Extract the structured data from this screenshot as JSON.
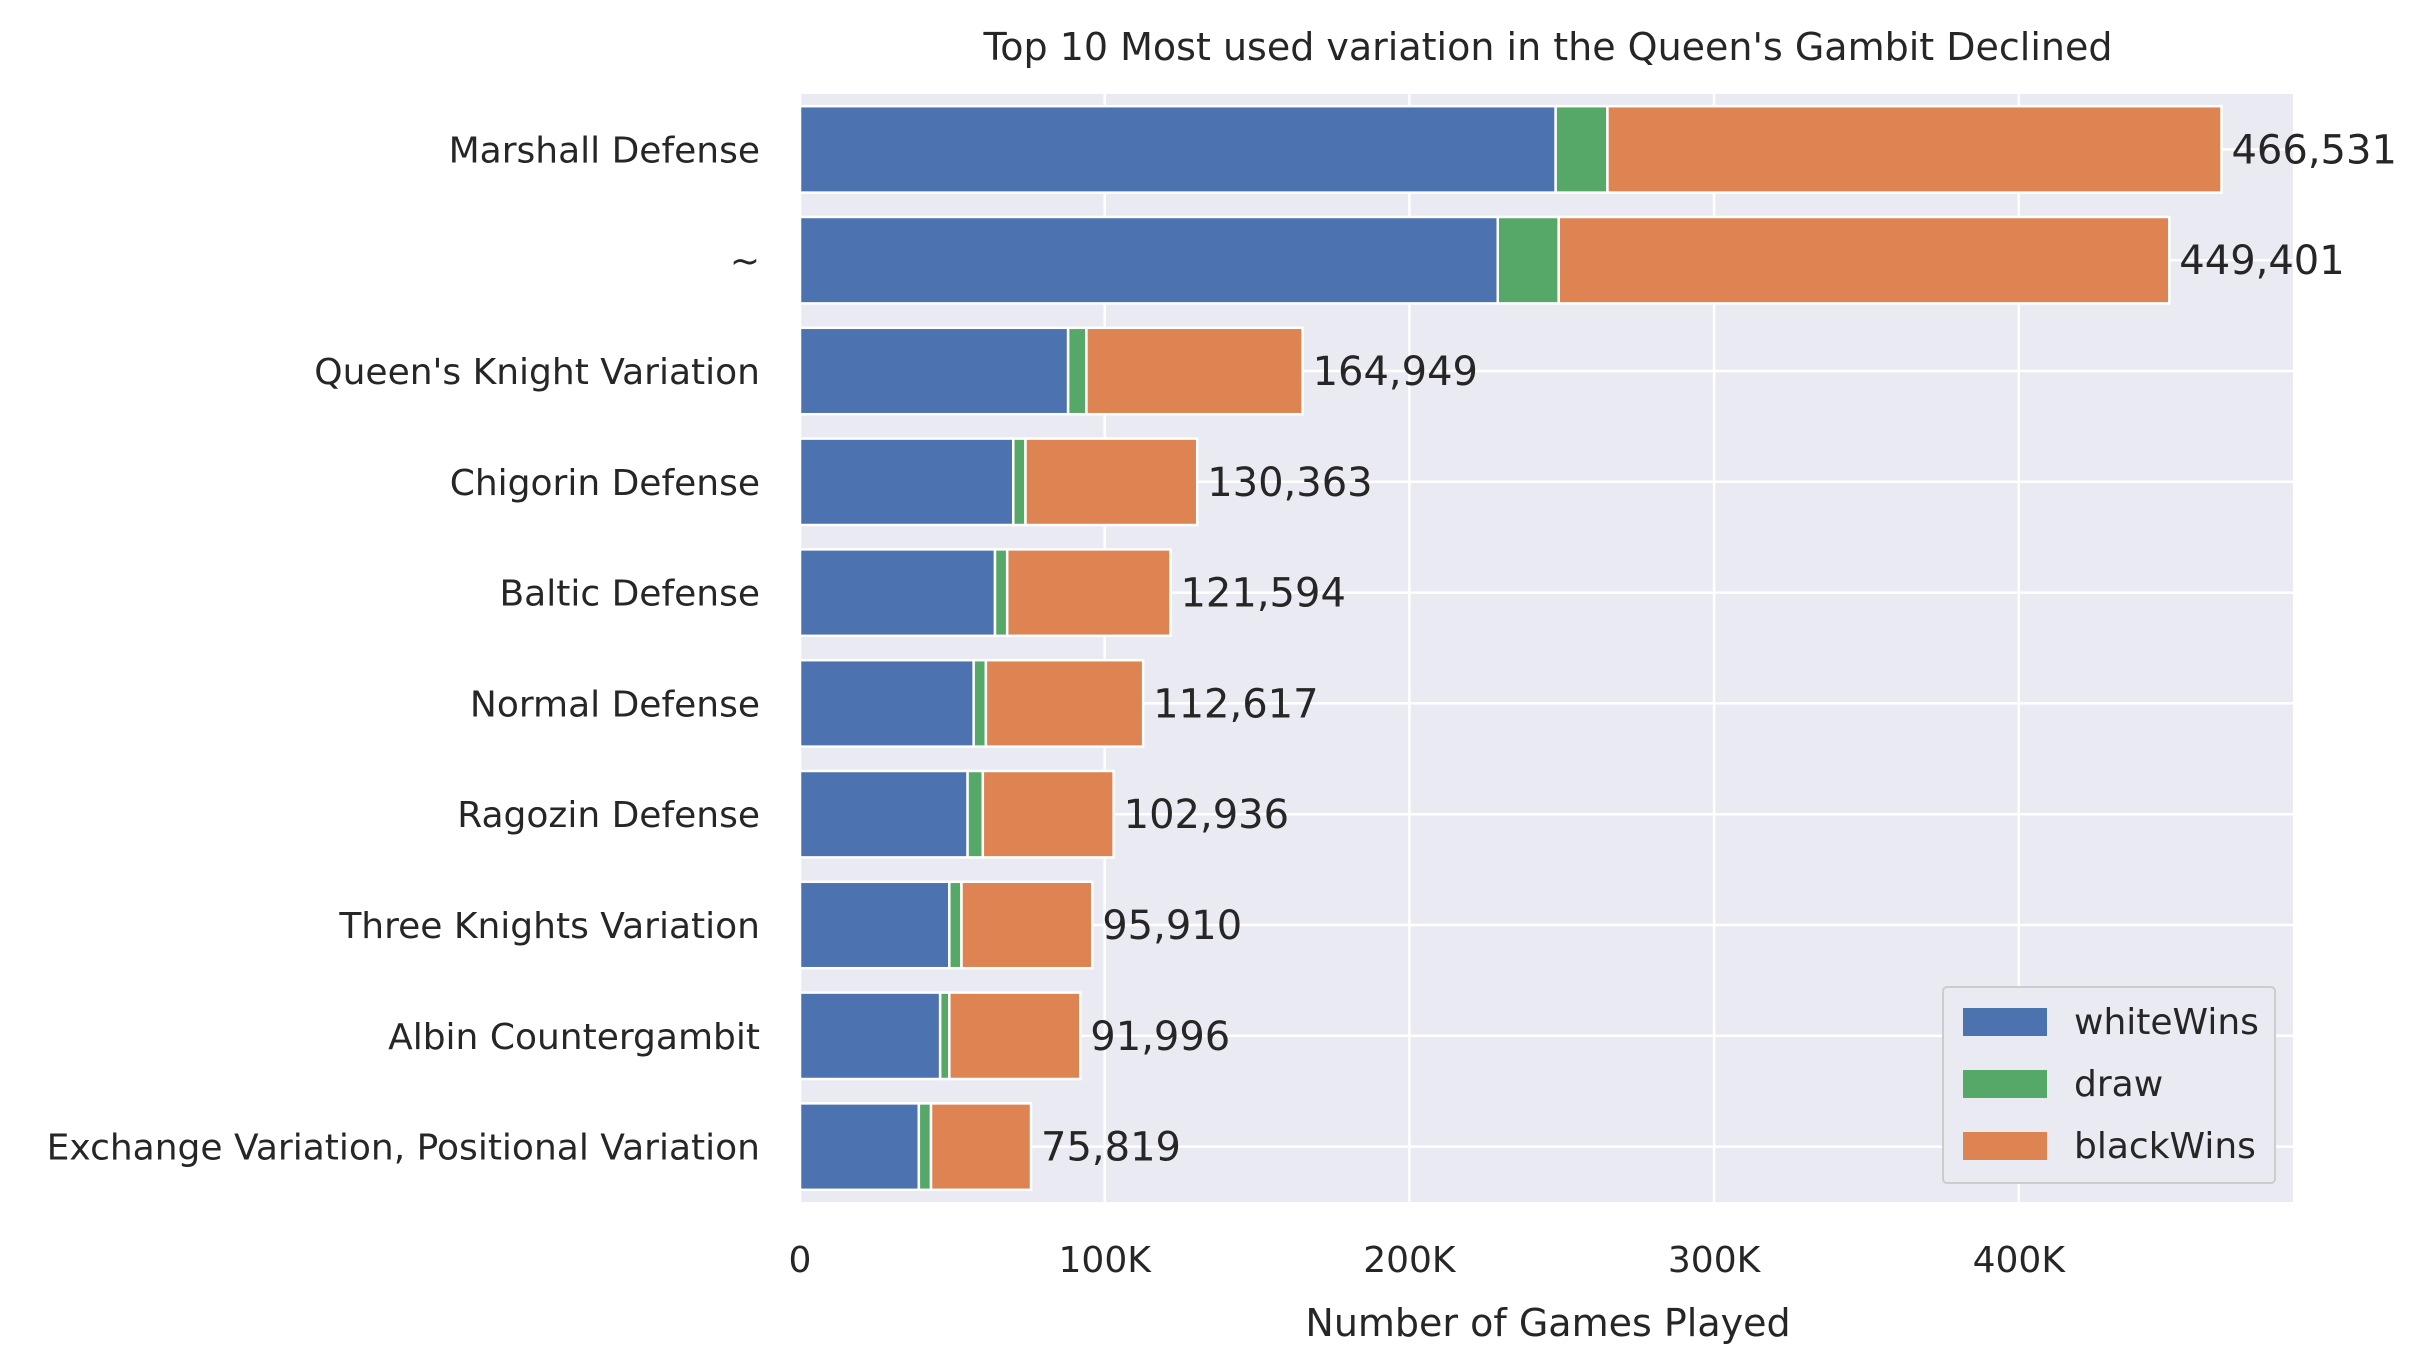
{
  "chart_data": {
    "type": "bar",
    "orientation": "horizontal",
    "stacked": true,
    "title": "Top 10 Most used variation in the Queen's Gambit Declined",
    "xlabel": "Number of Games Played",
    "ylabel": "",
    "xlim": [
      0,
      490000
    ],
    "xticks": [
      0,
      100000,
      200000,
      300000,
      400000
    ],
    "xtick_labels": [
      "0",
      "100K",
      "200K",
      "300K",
      "400K"
    ],
    "categories": [
      "Marshall Defense",
      "~",
      "Queen's Knight Variation",
      "Chigorin Defense",
      "Baltic Defense",
      "Normal Defense",
      "Ragozin Defense",
      "Three Knights Variation",
      "Albin Countergambit",
      "Exchange Variation, Positional Variation"
    ],
    "series": [
      {
        "name": "whiteWins",
        "color": "#4c72b0",
        "values": [
          248000,
          229000,
          88000,
          70000,
          64000,
          57000,
          55000,
          49000,
          46000,
          39000
        ]
      },
      {
        "name": "draw",
        "color": "#55a868",
        "values": [
          17000,
          20000,
          6000,
          4000,
          4000,
          4000,
          5000,
          4000,
          3000,
          4000
        ]
      },
      {
        "name": "blackWins",
        "color": "#dd8452",
        "values": [
          201531,
          200401,
          70949,
          56363,
          53594,
          51617,
          42936,
          42910,
          42996,
          32819
        ]
      }
    ],
    "totals": [
      466531,
      449401,
      164949,
      130363,
      121594,
      112617,
      102936,
      95910,
      91996,
      75819
    ],
    "total_labels": [
      "466,531",
      "449,401",
      "164,949",
      "130,363",
      "121,594",
      "112,617",
      "102,936",
      "95,910",
      "91,996",
      "75,819"
    ],
    "grid": true,
    "legend_position": "bottom-right",
    "background_color": "#eaeaf2"
  }
}
